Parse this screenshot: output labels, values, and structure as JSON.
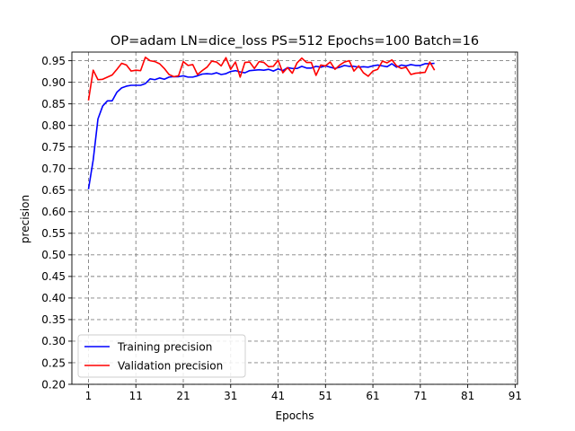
{
  "chart_data": {
    "type": "line",
    "title": "OP=adam LN=dice_loss PS=512 Epochs=100 Batch=16",
    "xlabel": "Epochs",
    "ylabel": "precision",
    "xlim": [
      -2.5,
      91.5
    ],
    "ylim": [
      0.2,
      0.97
    ],
    "xticks": [
      1,
      11,
      21,
      31,
      41,
      51,
      61,
      71,
      81,
      91
    ],
    "yticks": [
      0.2,
      0.25,
      0.3,
      0.35,
      0.4,
      0.45,
      0.5,
      0.55,
      0.6,
      0.65,
      0.7,
      0.75,
      0.8,
      0.85,
      0.9,
      0.95
    ],
    "grid": true,
    "legend_position": "lower-left",
    "x": [
      1,
      2,
      3,
      4,
      5,
      6,
      7,
      8,
      9,
      10,
      11,
      12,
      13,
      14,
      15,
      16,
      17,
      18,
      19,
      20,
      21,
      22,
      23,
      24,
      25,
      26,
      27,
      28,
      29,
      30,
      31,
      32,
      33,
      34,
      35,
      36,
      37,
      38,
      39,
      40,
      41,
      42,
      43,
      44,
      45,
      46,
      47,
      48,
      49,
      50,
      51,
      52,
      53,
      54,
      55,
      56,
      57,
      58,
      59,
      60,
      61,
      62,
      63,
      64,
      65,
      66,
      67,
      68,
      69,
      70,
      71,
      72,
      73,
      74
    ],
    "series": [
      {
        "name": "Training precision",
        "color": "#0000ff",
        "values": [
          0.652,
          0.72,
          0.815,
          0.845,
          0.857,
          0.857,
          0.877,
          0.887,
          0.891,
          0.893,
          0.893,
          0.893,
          0.897,
          0.908,
          0.906,
          0.91,
          0.907,
          0.912,
          0.913,
          0.913,
          0.915,
          0.912,
          0.912,
          0.915,
          0.919,
          0.92,
          0.919,
          0.922,
          0.918,
          0.92,
          0.925,
          0.927,
          0.924,
          0.922,
          0.927,
          0.928,
          0.929,
          0.928,
          0.93,
          0.926,
          0.931,
          0.927,
          0.934,
          0.932,
          0.932,
          0.937,
          0.933,
          0.933,
          0.937,
          0.935,
          0.938,
          0.935,
          0.932,
          0.935,
          0.939,
          0.937,
          0.937,
          0.935,
          0.936,
          0.935,
          0.938,
          0.94,
          0.938,
          0.936,
          0.943,
          0.935,
          0.94,
          0.938,
          0.941,
          0.939,
          0.939,
          0.943,
          0.943,
          0.944
        ]
      },
      {
        "name": "Validation precision",
        "color": "#ff0000",
        "values": [
          0.858,
          0.928,
          0.906,
          0.907,
          0.912,
          0.917,
          0.93,
          0.944,
          0.94,
          0.926,
          0.928,
          0.927,
          0.958,
          0.95,
          0.948,
          0.943,
          0.932,
          0.918,
          0.913,
          0.915,
          0.948,
          0.939,
          0.941,
          0.918,
          0.927,
          0.935,
          0.949,
          0.947,
          0.938,
          0.957,
          0.93,
          0.947,
          0.912,
          0.946,
          0.947,
          0.932,
          0.948,
          0.946,
          0.936,
          0.937,
          0.951,
          0.922,
          0.934,
          0.921,
          0.945,
          0.956,
          0.946,
          0.946,
          0.916,
          0.94,
          0.938,
          0.947,
          0.93,
          0.94,
          0.947,
          0.95,
          0.926,
          0.938,
          0.922,
          0.914,
          0.926,
          0.93,
          0.949,
          0.945,
          0.952,
          0.938,
          0.932,
          0.935,
          0.918,
          0.921,
          0.922,
          0.923,
          0.947,
          0.928
        ]
      }
    ]
  }
}
